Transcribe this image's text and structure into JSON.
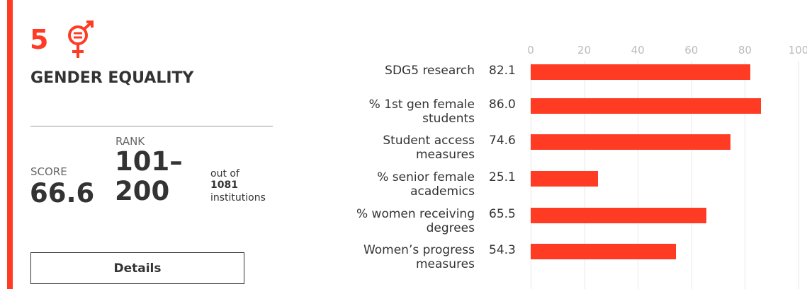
{
  "card": {
    "number": "5",
    "title": "GENDER EQUALITY",
    "score_label": "SCORE",
    "score": "66.6",
    "rank_label": "RANK",
    "rank": "101–200",
    "out_of": "out of",
    "total": "1081",
    "institutions": "institutions",
    "button": "Details"
  },
  "chart_data": {
    "type": "barh",
    "categories": [
      "SDG5 research",
      "% 1st gen female students",
      "Student access measures",
      "% senior female academics",
      "% women receiving degrees",
      "Women’s progress measures"
    ],
    "values": [
      82.1,
      86.0,
      74.6,
      25.1,
      65.5,
      54.3
    ],
    "value_labels": [
      "82.1",
      "86.0",
      "74.6",
      "25.1",
      "65.5",
      "54.3"
    ],
    "color": "#ff3b24",
    "xlim": [
      0,
      100
    ],
    "xticks": [
      0,
      20,
      40,
      60,
      80,
      100
    ],
    "grid": true
  }
}
